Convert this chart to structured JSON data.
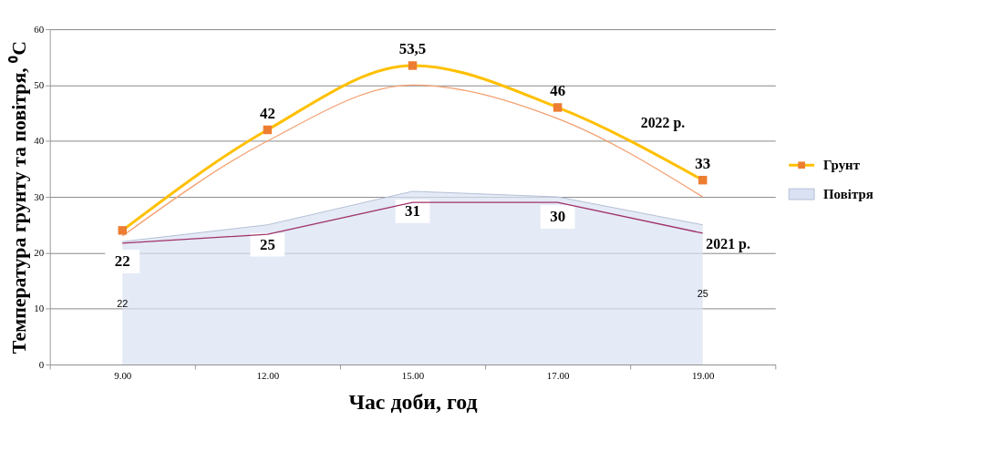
{
  "chart_data": {
    "type": "line",
    "xlabel": "Час доби, год",
    "ylabel": "Температура грунту та повітря, ⁰C",
    "categories": [
      "9.00",
      "12.00",
      "15.00",
      "17.00",
      "19.00"
    ],
    "series": [
      {
        "type": "area",
        "name": "Повітря",
        "color": "#d9e1f2",
        "values": [
          22,
          25,
          31,
          30,
          25
        ],
        "value_labels": [
          "22",
          "25",
          "31",
          "30",
          null
        ]
      },
      {
        "type": "line",
        "color": "#a0306a",
        "values": [
          21.7,
          23.3,
          29,
          29,
          23.5
        ]
      },
      {
        "type": "line",
        "color": "#f4a070",
        "values": [
          23,
          40,
          50,
          44,
          30
        ]
      },
      {
        "name": "Грунт",
        "color": "#ffc000",
        "colors": [
          "#ed7d31",
          "#ed7d31",
          "#ed7d31",
          "#ed7d31",
          "#ed7d31"
        ],
        "marker": "square",
        "values": [
          24,
          42,
          53.5,
          46,
          33
        ],
        "value_labels": [
          null,
          "42",
          "53,5",
          "46",
          "33"
        ]
      }
    ],
    "annotations": [
      "2022 р.",
      "2021 р.",
      "22",
      "25"
    ],
    "ylim": [
      0,
      60
    ],
    "yticks": [
      0,
      10,
      20,
      30,
      40,
      50,
      60
    ],
    "grid": "y",
    "legend": "right"
  }
}
